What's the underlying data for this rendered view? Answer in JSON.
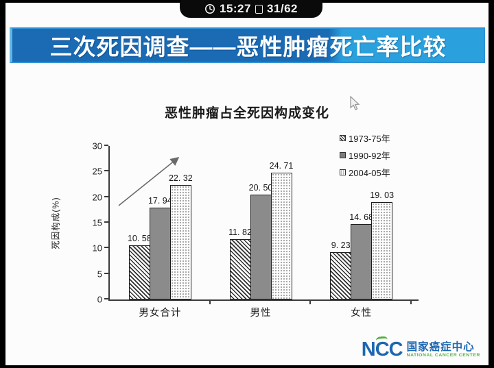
{
  "player": {
    "time": "15:27",
    "page_indicator": "31/62"
  },
  "banner": {
    "title": "三次死因调查——恶性肿瘤死亡率比较"
  },
  "chart_data": {
    "type": "bar",
    "title": "恶性肿瘤占全死因构成变化",
    "categories": [
      "男女合计",
      "男性",
      "女性"
    ],
    "series": [
      {
        "name": "1973-75年",
        "pattern": "diagonal-hatch",
        "values": [
          10.58,
          11.82,
          9.23
        ],
        "labels": [
          "10. 58",
          "11. 82",
          "9. 23"
        ]
      },
      {
        "name": "1990-92年",
        "pattern": "solid-gray",
        "values": [
          17.94,
          20.5,
          14.68
        ],
        "labels": [
          "17. 94",
          "20. 50",
          "14. 68"
        ]
      },
      {
        "name": "2004-05年",
        "pattern": "dot-grid",
        "values": [
          22.32,
          24.71,
          19.03
        ],
        "labels": [
          "22. 32",
          "24. 71",
          "19. 03"
        ]
      }
    ],
    "xlabel": "",
    "ylabel": "死因构成(%)",
    "ylim": [
      0,
      30
    ],
    "yticks": [
      0,
      5,
      10,
      15,
      20,
      25,
      30
    ],
    "grid": false,
    "legend_position": "top-right",
    "annotation": "up-trend-arrow over first category group"
  },
  "footer_logo": {
    "abbr": "NCC",
    "name_cn": "国家癌症中心",
    "name_en": "NATIONAL CANCER CENTER",
    "blue": "#1d67b1",
    "green": "#4fae3a"
  },
  "colors": {
    "banner_dark_blue": "#1a6ab4",
    "banner_light_blue": "#2aa0dd",
    "banner_text": "#ffffff",
    "bar_solid_gray": "#8b8b8b",
    "axis": "#3a3a3a",
    "frame": "#000000"
  }
}
